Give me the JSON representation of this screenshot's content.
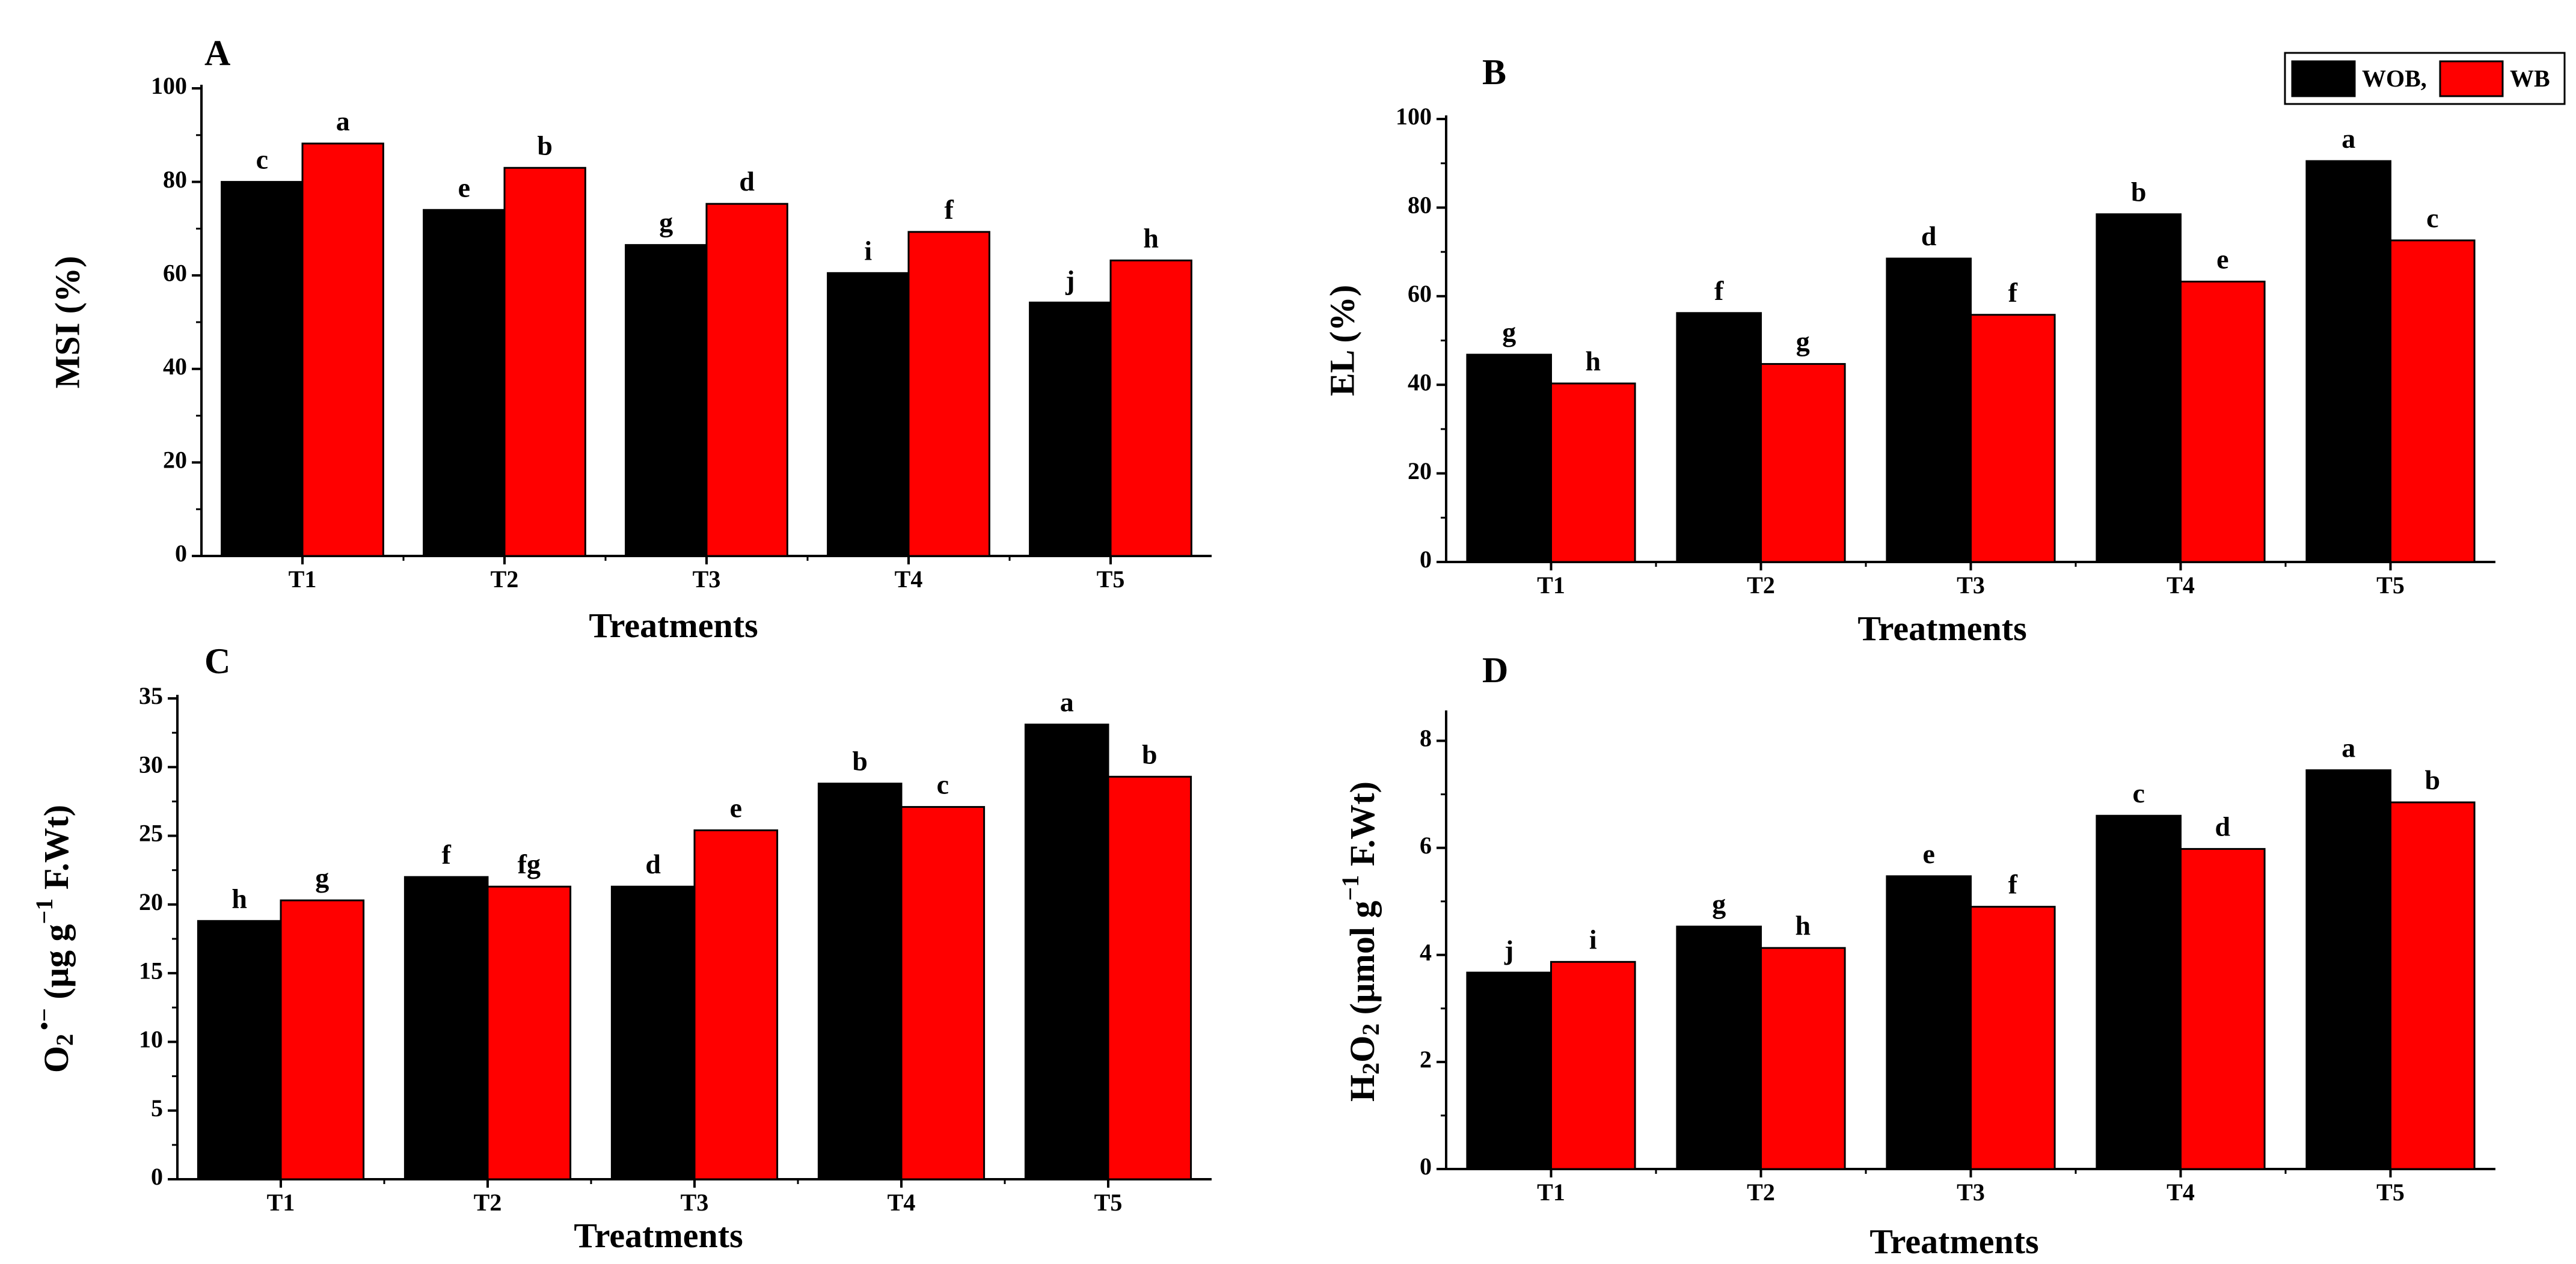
{
  "legend": {
    "entries": [
      {
        "label": "WOB,",
        "color": "#000000"
      },
      {
        "label": "WB",
        "color": "#ff0000"
      }
    ],
    "placement": "top-right"
  },
  "chart_data": [
    {
      "panel": "A",
      "type": "bar",
      "categories": [
        "T1",
        "T2",
        "T3",
        "T4",
        "T5"
      ],
      "series": [
        {
          "name": "WOB,",
          "color": "#000000",
          "values": [
            80,
            74,
            66.5,
            60.5,
            54.2
          ],
          "labels": [
            "c",
            "e",
            "g",
            "i",
            "j"
          ]
        },
        {
          "name": "WB",
          "color": "#ff0000",
          "values": [
            88.2,
            83,
            75.3,
            69.3,
            63.2
          ],
          "labels": [
            "a",
            "b",
            "d",
            "f",
            "h"
          ]
        }
      ],
      "xlabel": "Treatments",
      "ylabel": "MSI (%)",
      "ylim": [
        0,
        100
      ],
      "yticks": [
        "0",
        "20",
        "40",
        "60",
        "80",
        "100"
      ]
    },
    {
      "panel": "B",
      "type": "bar",
      "categories": [
        "T1",
        "T2",
        "T3",
        "T4",
        "T5"
      ],
      "series": [
        {
          "name": "WOB,",
          "color": "#000000",
          "values": [
            46.8,
            56.2,
            68.5,
            78.5,
            90.5
          ],
          "labels": [
            "g",
            "f",
            "d",
            "b",
            "a"
          ]
        },
        {
          "name": "WB",
          "color": "#ff0000",
          "values": [
            40.3,
            44.7,
            55.8,
            63.3,
            72.6
          ],
          "labels": [
            "h",
            "g",
            "f",
            "e",
            "c"
          ]
        }
      ],
      "xlabel": "Treatments",
      "ylabel": "EL (%)",
      "ylim": [
        0,
        100
      ],
      "yticks": [
        "0",
        "20",
        "40",
        "60",
        "80",
        "100"
      ]
    },
    {
      "panel": "C",
      "type": "bar",
      "categories": [
        "T1",
        "T2",
        "T3",
        "T4",
        "T5"
      ],
      "series": [
        {
          "name": "WOB,",
          "color": "#000000",
          "values": [
            18.8,
            22,
            21.3,
            28.8,
            33.1
          ],
          "labels": [
            "h",
            "f",
            "d",
            "b",
            "a"
          ]
        },
        {
          "name": "WB",
          "color": "#ff0000",
          "values": [
            20.3,
            21.3,
            25.4,
            27.1,
            29.3
          ],
          "labels": [
            "g",
            "fg",
            "e",
            "c",
            "b"
          ]
        }
      ],
      "xlabel": "Treatments",
      "ylabel": "O2 •− (µg g−1 F.Wt)",
      "ylim": [
        0,
        35
      ],
      "yticks": [
        "0",
        "5",
        "10",
        "15",
        "20",
        "25",
        "30",
        "35"
      ]
    },
    {
      "panel": "D",
      "type": "bar",
      "categories": [
        "T1",
        "T2",
        "T3",
        "T4",
        "T5"
      ],
      "series": [
        {
          "name": "WOB,",
          "color": "#000000",
          "values": [
            3.67,
            4.53,
            5.47,
            6.6,
            7.45
          ],
          "labels": [
            "j",
            "g",
            "e",
            "c",
            "a"
          ]
        },
        {
          "name": "WB",
          "color": "#ff0000",
          "values": [
            3.87,
            4.13,
            4.9,
            5.98,
            6.85
          ],
          "labels": [
            "i",
            "h",
            "f",
            "d",
            "b"
          ]
        }
      ],
      "xlabel": "Treatments",
      "ylabel": "H2O2 (µmol g−1 F.Wt)",
      "ylim": [
        0,
        8.5
      ],
      "yticks": [
        "0",
        "2",
        "4",
        "6",
        "8"
      ]
    }
  ]
}
